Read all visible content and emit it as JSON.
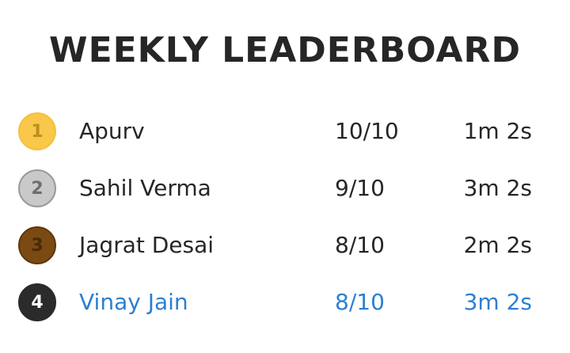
{
  "title": "WEEKLY LEADERBOARD",
  "colors": {
    "text": "#262626",
    "highlight": "#2d7fd1",
    "gold": "#f9c84a",
    "silver": "#c9c9c9",
    "bronze": "#7a4a12",
    "dark": "#2b2b2b"
  },
  "rows": [
    {
      "rank": "1",
      "name": "Apurv",
      "score": "10/10",
      "time": "1m 2s",
      "medal": "gold-medal-icon",
      "highlight": false
    },
    {
      "rank": "2",
      "name": "Sahil Verma",
      "score": "9/10",
      "time": "3m 2s",
      "medal": "silver-medal-icon",
      "highlight": false
    },
    {
      "rank": "3",
      "name": "Jagrat Desai",
      "score": "8/10",
      "time": "2m 2s",
      "medal": "bronze-medal-icon",
      "highlight": false
    },
    {
      "rank": "4",
      "name": "Vinay Jain",
      "score": "8/10",
      "time": "3m 2s",
      "medal": "rank-badge-icon",
      "highlight": true
    }
  ]
}
